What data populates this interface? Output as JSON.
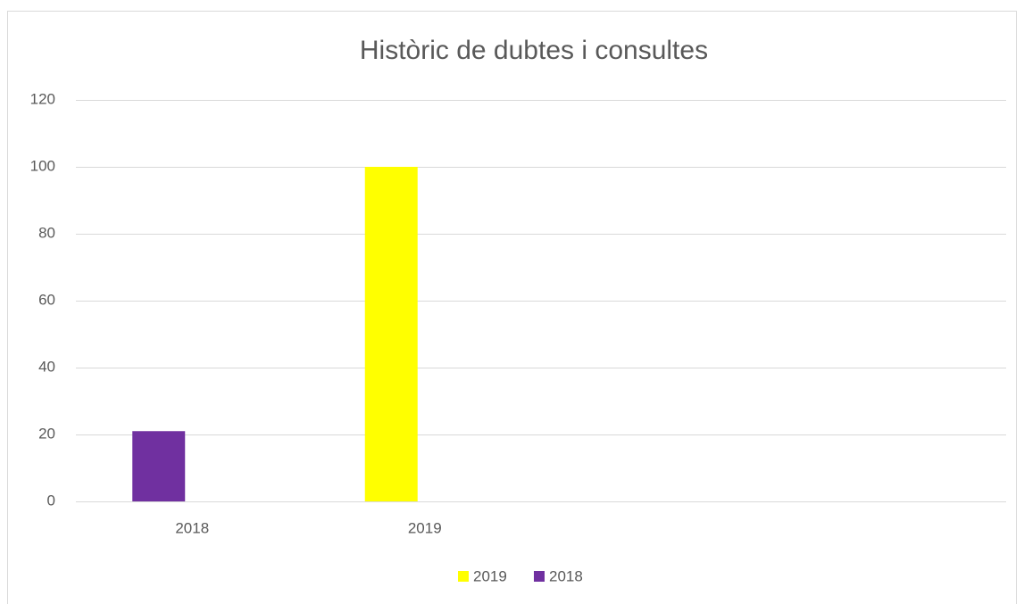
{
  "chart_data": {
    "type": "bar",
    "title": "Històric de dubtes i consultes",
    "categories": [
      "2018",
      "2019",
      null,
      null
    ],
    "series": [
      {
        "name": "2019",
        "color": "#ffff00",
        "values": [
          null,
          100,
          null,
          null
        ]
      },
      {
        "name": "2018",
        "color": "#7030a0",
        "values": [
          21,
          null,
          null,
          null
        ]
      }
    ],
    "ylim": [
      0,
      120
    ],
    "yticks": [
      0,
      20,
      40,
      60,
      80,
      100,
      120
    ],
    "grid": true,
    "legend": "bottom"
  }
}
